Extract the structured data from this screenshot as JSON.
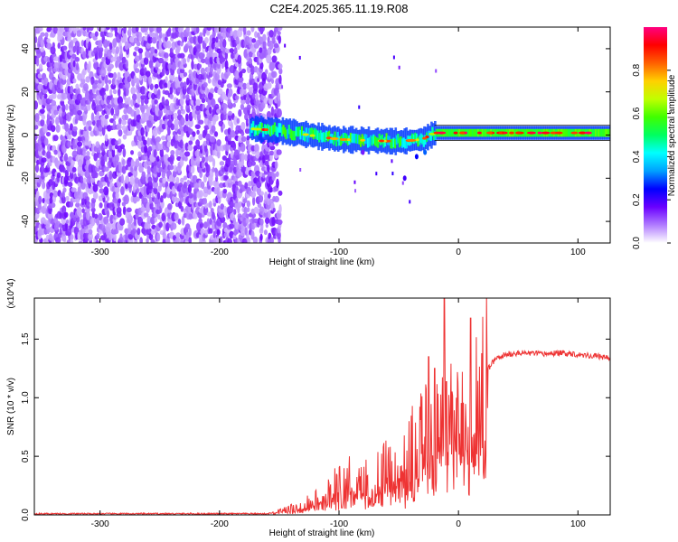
{
  "figure_title": "C2E4.2025.365.11.19.R08",
  "chart_data": [
    {
      "type": "heatmap",
      "title": "",
      "xlabel": "Height of straight line (km)",
      "ylabel": "Frequency (Hz)",
      "xlim": [
        -355,
        127
      ],
      "ylim": [
        -50,
        50
      ],
      "xticks": [
        -300,
        -200,
        -100,
        0,
        100
      ],
      "yticks": [
        -40,
        -20,
        0,
        20,
        40
      ],
      "colorbar": {
        "label": "Normalized spectral amplitude",
        "range": [
          0,
          1
        ],
        "ticks": [
          0.0,
          0.2,
          0.4,
          0.6,
          0.8
        ],
        "tick_labels": [
          "0.0",
          "0.2",
          "0.4",
          "0.6",
          "0.8"
        ],
        "colormap": [
          "#ffffff",
          "#b07cff",
          "#6a00ff",
          "#0000ff",
          "#00a0ff",
          "#00ffff",
          "#00ff60",
          "#40ff00",
          "#c0ff00",
          "#ffd000",
          "#ff6000",
          "#ff0000",
          "#ff0080"
        ]
      },
      "regions": [
        {
          "name": "noise",
          "x": [
            -355,
            -150
          ],
          "y": [
            -50,
            50
          ],
          "amplitude": [
            0.0,
            0.35
          ]
        },
        {
          "name": "signal",
          "x": [
            -175,
            127
          ],
          "y_center": [
            [
              -175,
              3
            ],
            [
              -150,
              2
            ],
            [
              -100,
              -2
            ],
            [
              -50,
              -3
            ],
            [
              -30,
              -2
            ],
            [
              -20,
              1
            ],
            [
              0,
              1
            ],
            [
              50,
              1
            ],
            [
              127,
              1
            ]
          ],
          "amplitude": [
            0.3,
            1.0
          ]
        }
      ]
    },
    {
      "type": "line",
      "title": "",
      "xlabel": "Height of straight line (km)",
      "ylabel": "SNR (10 * v/v)",
      "y_scale_label": "(x10^4)",
      "xlim": [
        -355,
        127
      ],
      "ylim": [
        0,
        1.85
      ],
      "xticks": [
        -300,
        -200,
        -100,
        0,
        100
      ],
      "yticks": [
        0.0,
        0.5,
        1.0,
        1.5
      ],
      "ytick_labels": [
        "0.0",
        "0.5",
        "1.0",
        "1.5"
      ],
      "series_color": "#ee3333",
      "series": [
        {
          "name": "",
          "x": [
            -355,
            -300,
            -250,
            -200,
            -160,
            -150,
            -140,
            -130,
            -120,
            -110,
            -100,
            -95,
            -90,
            -80,
            -70,
            -60,
            -50,
            -40,
            -35,
            -30,
            -25,
            -20,
            -15,
            -12,
            -10,
            -5,
            0,
            5,
            8,
            10,
            15,
            20,
            25,
            30,
            40,
            50,
            60,
            70,
            80,
            90,
            100,
            110,
            120,
            127
          ],
          "y": [
            0.01,
            0.01,
            0.01,
            0.01,
            0.01,
            0.03,
            0.05,
            0.08,
            0.12,
            0.18,
            0.25,
            0.22,
            0.28,
            0.25,
            0.3,
            0.35,
            0.4,
            0.5,
            0.55,
            0.6,
            0.65,
            0.7,
            0.75,
            0.8,
            0.78,
            0.82,
            0.9,
            0.85,
            0.65,
            0.95,
            1.05,
            1.15,
            1.25,
            1.32,
            1.37,
            1.38,
            1.38,
            1.37,
            1.38,
            1.38,
            1.37,
            1.36,
            1.35,
            1.34
          ]
        }
      ],
      "spikes": [
        {
          "x": -12,
          "y": 1.85
        },
        {
          "x": 10,
          "y": 1.68
        },
        {
          "x": -25,
          "y": 1.35
        },
        {
          "x": -20,
          "y": 1.25
        }
      ]
    }
  ]
}
